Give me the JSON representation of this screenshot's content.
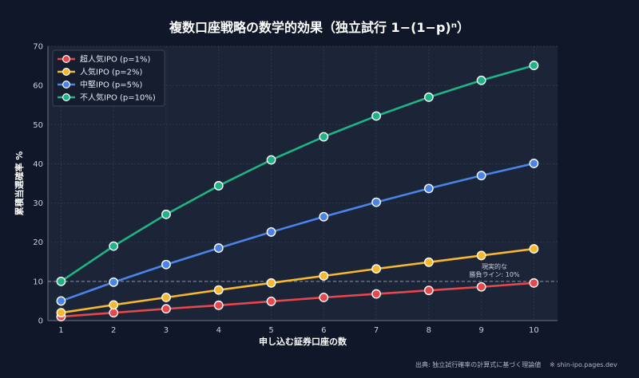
{
  "chart_data": {
    "type": "line",
    "title": "複数口座戦略の数学的効果（独立試行 1−(1−p)ⁿ）",
    "xlabel": "申し込む証券口座の数",
    "ylabel": "累積当選確率 %",
    "x": [
      1,
      2,
      3,
      4,
      5,
      6,
      7,
      8,
      9,
      10
    ],
    "xlim": [
      0.75,
      10.45
    ],
    "ylim": [
      0,
      70
    ],
    "yticks": [
      0,
      10,
      20,
      30,
      40,
      50,
      60,
      70
    ],
    "grid": true,
    "legend_position": "top-left",
    "series": [
      {
        "name": "超人気IPO (p=1%)",
        "color": "#e5484d",
        "values": [
          1.0,
          2.0,
          3.0,
          3.9,
          4.9,
          5.9,
          6.8,
          7.7,
          8.6,
          9.6
        ]
      },
      {
        "name": "人気IPO (p=2%)",
        "color": "#f5b82e",
        "values": [
          2.0,
          4.0,
          5.9,
          7.8,
          9.6,
          11.4,
          13.2,
          14.9,
          16.6,
          18.3
        ]
      },
      {
        "name": "中堅IPO (p=5%)",
        "color": "#4a84e8",
        "values": [
          5.0,
          9.8,
          14.3,
          18.5,
          22.6,
          26.5,
          30.2,
          33.7,
          37.0,
          40.1
        ]
      },
      {
        "name": "不人気IPO (p=10%)",
        "color": "#1fb386",
        "values": [
          10.0,
          19.0,
          27.1,
          34.4,
          41.0,
          46.9,
          52.2,
          57.0,
          61.3,
          65.1
        ]
      }
    ],
    "reference_line": {
      "y": 10,
      "label_line1": "現実的な",
      "label_line2": "勝負ライン: 10%"
    }
  },
  "footer": {
    "source": "出典: 独立試行確率の計算式に基づく理論値",
    "site": "※ shin-ipo.pages.dev"
  },
  "colors": {
    "background": "#0f1729",
    "plot_background": "#1c2538",
    "grid": "#2c364b"
  }
}
